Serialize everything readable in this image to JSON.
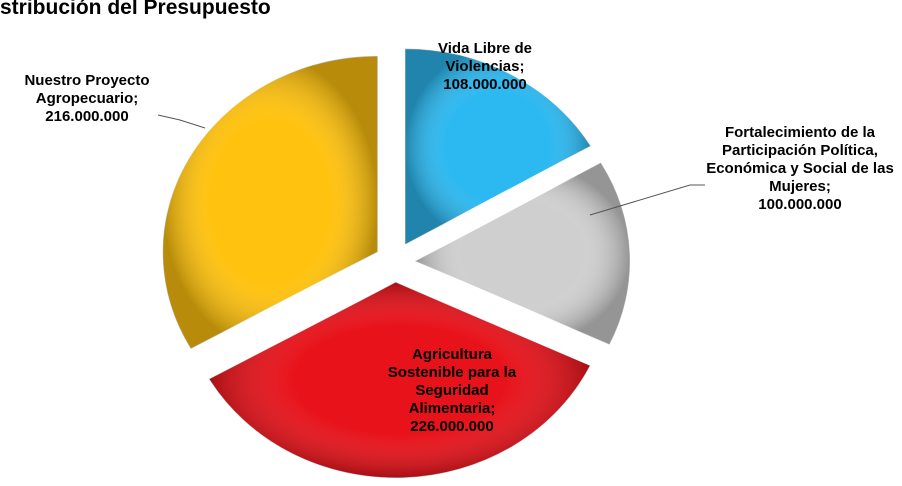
{
  "chart_data": {
    "type": "pie",
    "title": "stribución del Presupuesto",
    "categories": [
      "Vida Libre de Violencias;",
      "Fortalecimiento de la Participación Política, Económica y Social de las Mujeres;",
      "Agricultura Sostenible para la Seguridad Alimentaria;",
      "Nuestro Proyecto Agropecuario;"
    ],
    "values": [
      108000000,
      100000000,
      226000000,
      216000000
    ],
    "value_labels": [
      "108.000.000",
      "100.000.000",
      "226.000.000",
      "216.000.000"
    ],
    "colors": [
      "#2cb8f0",
      "#cfcfcf",
      "#e8121a",
      "#ffc20e"
    ]
  }
}
